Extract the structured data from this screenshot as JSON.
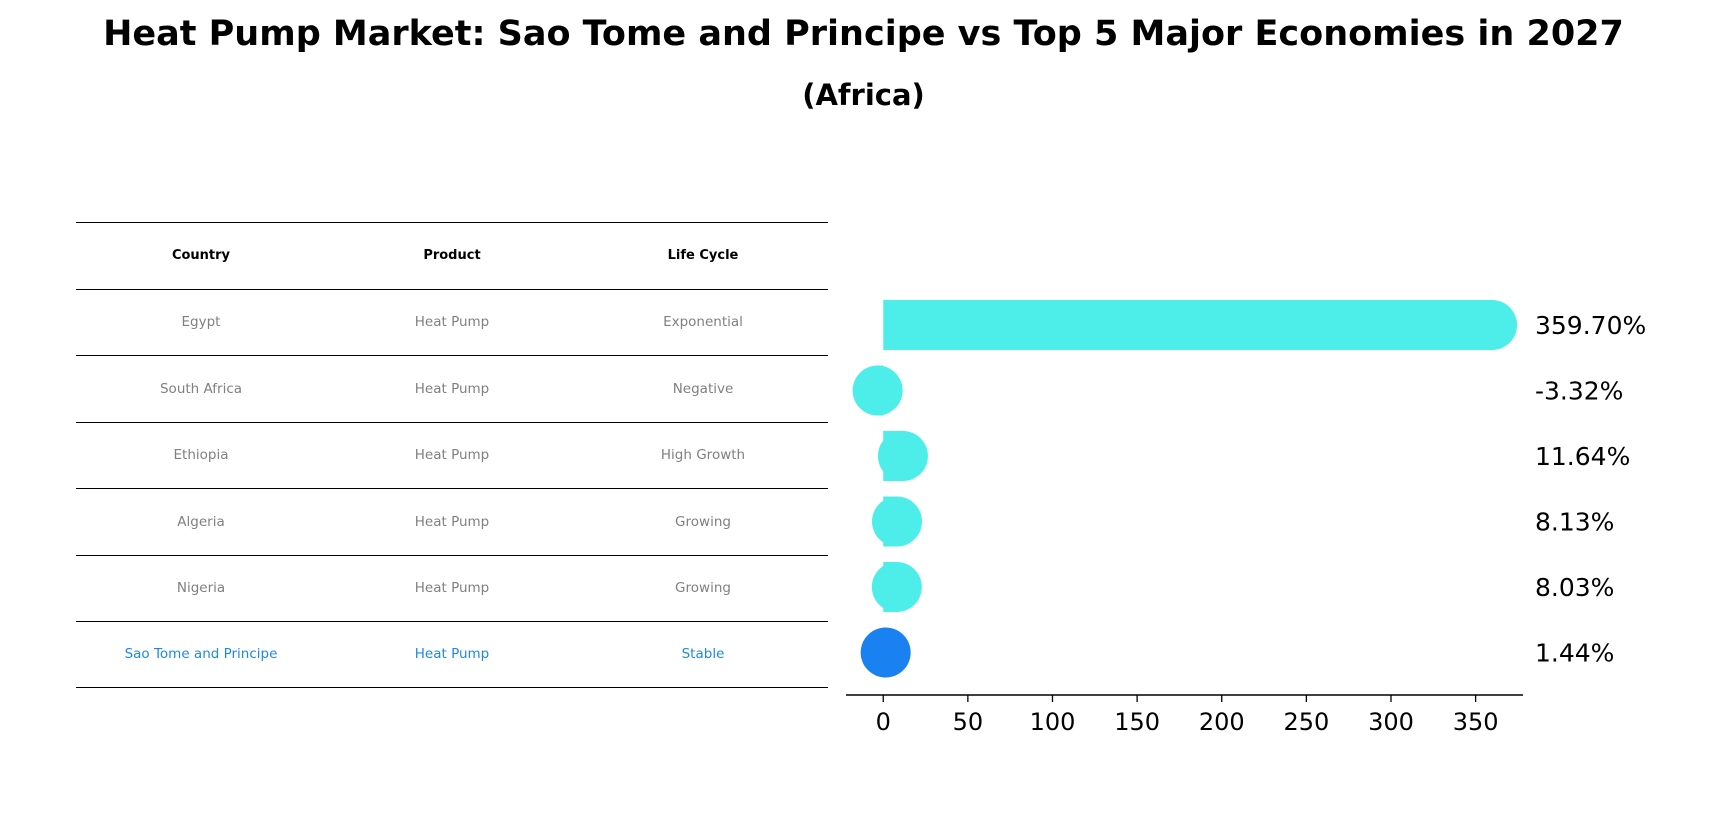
{
  "title": "Heat Pump Market: Sao Tome and Principe vs Top 5 Major Economies in 2027",
  "subtitle": "(Africa)",
  "table": {
    "headers": [
      "Country",
      "Product",
      "Life Cycle"
    ],
    "rows": [
      [
        "Egypt",
        "Heat Pump",
        "Exponential"
      ],
      [
        "South Africa",
        "Heat Pump",
        "Negative"
      ],
      [
        "Ethiopia",
        "Heat Pump",
        "High Growth"
      ],
      [
        "Algeria",
        "Heat Pump",
        "Growing"
      ],
      [
        "Nigeria",
        "Heat Pump",
        "Growing"
      ],
      [
        "Sao Tome and Principe",
        "Heat Pump",
        "Stable"
      ]
    ],
    "highlight_row": 5,
    "text_color": "#808080",
    "highlight_color": "#1e88e5"
  },
  "chart_data": {
    "type": "bar",
    "orientation": "horizontal",
    "categories": [
      "Egypt",
      "South Africa",
      "Ethiopia",
      "Algeria",
      "Nigeria",
      "Sao Tome and Principe"
    ],
    "values": [
      359.7,
      -3.32,
      11.64,
      8.13,
      8.03,
      1.44
    ],
    "labels": [
      "359.70%",
      "-3.32%",
      "11.64%",
      "8.13%",
      "8.03%",
      "1.44%"
    ],
    "colors": [
      "#4deeea",
      "#4deeea",
      "#4deeea",
      "#4deeea",
      "#4deeea",
      "#1982f0"
    ],
    "xlim": [
      -22,
      378
    ],
    "xticks": [
      0,
      50,
      100,
      150,
      200,
      250,
      300,
      350
    ],
    "grid": false,
    "legend": "none"
  }
}
